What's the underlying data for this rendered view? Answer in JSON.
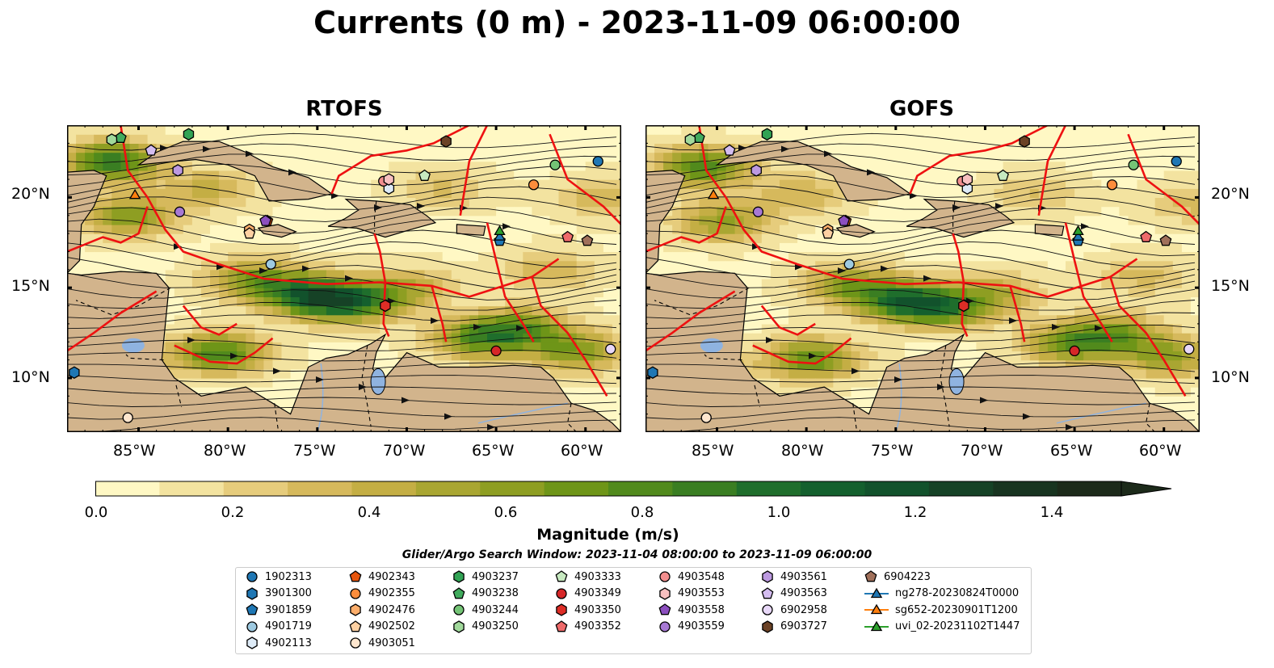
{
  "title": "Currents (0 m) - 2023-11-09 06:00:00",
  "panels": [
    {
      "title": "RTOFS"
    },
    {
      "title": "GOFS"
    }
  ],
  "lat_labels": [
    "20°N",
    "15°N",
    "10°N"
  ],
  "lon_labels": [
    "85°W",
    "80°W",
    "75°W",
    "70°W",
    "65°W",
    "60°W"
  ],
  "colorbar": {
    "label": "Magnitude (m/s)",
    "ticks": [
      "0.0",
      "0.2",
      "0.4",
      "0.6",
      "0.8",
      "1.0",
      "1.2",
      "1.4"
    ],
    "range": [
      0.0,
      1.5
    ],
    "colors": [
      "#fff8c4",
      "#f3e3a0",
      "#e6cc7c",
      "#d6b95c",
      "#c4ae44",
      "#a9a632",
      "#8e9e22",
      "#6e9518",
      "#518a1c",
      "#3a7e22",
      "#1f6e2c",
      "#14602e",
      "#12522c",
      "#164226",
      "#183420",
      "#1c2a1a"
    ]
  },
  "search_window": "Glider/Argo Search Window: 2023-11-04 08:00:00 to 2023-11-09 06:00:00",
  "legend": [
    {
      "label": "1902313",
      "marker": "circle",
      "color": "#1f77b4"
    },
    {
      "label": "3901300",
      "marker": "hexagon",
      "color": "#1f77b4"
    },
    {
      "label": "3901859",
      "marker": "pentagon",
      "color": "#1f77b4"
    },
    {
      "label": "4901719",
      "marker": "circle",
      "color": "#9ecae1"
    },
    {
      "label": "4902113",
      "marker": "hexagon",
      "color": "#deebf7"
    },
    {
      "label": "4902343",
      "marker": "pentagon",
      "color": "#e6550d"
    },
    {
      "label": "4902355",
      "marker": "circle",
      "color": "#fd8d3c"
    },
    {
      "label": "4902476",
      "marker": "hexagon",
      "color": "#fdae6b"
    },
    {
      "label": "4902502",
      "marker": "pentagon",
      "color": "#fdd0a2"
    },
    {
      "label": "4903051",
      "marker": "circle",
      "color": "#fee6ce"
    },
    {
      "label": "4903237",
      "marker": "hexagon",
      "color": "#31a354"
    },
    {
      "label": "4903238",
      "marker": "pentagon",
      "color": "#41ab5d"
    },
    {
      "label": "4903244",
      "marker": "circle",
      "color": "#74c476"
    },
    {
      "label": "4903250",
      "marker": "hexagon",
      "color": "#a1d99b"
    },
    {
      "label": "4903333",
      "marker": "pentagon",
      "color": "#c7e9c0"
    },
    {
      "label": "4903349",
      "marker": "circle",
      "color": "#d62728"
    },
    {
      "label": "4903350",
      "marker": "hexagon",
      "color": "#de2d26"
    },
    {
      "label": "4903352",
      "marker": "pentagon",
      "color": "#ee6a6a"
    },
    {
      "label": "4903548",
      "marker": "circle",
      "color": "#f28e8e"
    },
    {
      "label": "4903553",
      "marker": "hexagon",
      "color": "#f8c0c0"
    },
    {
      "label": "4903558",
      "marker": "pentagon",
      "color": "#8c4fbf"
    },
    {
      "label": "4903559",
      "marker": "circle",
      "color": "#a779d4"
    },
    {
      "label": "4903561",
      "marker": "hexagon",
      "color": "#bc99e0"
    },
    {
      "label": "4903563",
      "marker": "pentagon",
      "color": "#d4bdf0"
    },
    {
      "label": "6902958",
      "marker": "circle",
      "color": "#e8d8f8"
    },
    {
      "label": "6903727",
      "marker": "hexagon",
      "color": "#6b4226"
    },
    {
      "label": "6904223",
      "marker": "pentagon",
      "color": "#a0705a"
    },
    {
      "label": "ng278-20230824T0000",
      "marker": "triangle-line",
      "color": "#1f77b4"
    },
    {
      "label": "sg652-20230901T1200",
      "marker": "triangle-line",
      "color": "#ff7f0e"
    },
    {
      "label": "uvi_02-20231102T1447",
      "marker": "triangle-line",
      "color": "#2ca02c"
    }
  ],
  "map_extent": {
    "lon": [
      -89,
      -58
    ],
    "lat": [
      7,
      24
    ]
  },
  "floats": [
    {
      "id": "1902313",
      "lon": -59.3,
      "lat": 22.0
    },
    {
      "id": "3901300",
      "lon": -88.6,
      "lat": 10.3
    },
    {
      "id": "3901859",
      "lon": -64.8,
      "lat": 17.6
    },
    {
      "id": "4901719",
      "lon": -77.6,
      "lat": 16.3
    },
    {
      "id": "4902113",
      "lon": -71.0,
      "lat": 20.5
    },
    {
      "id": "4902343",
      "lon": -77.8,
      "lat": 18.7
    },
    {
      "id": "4902355",
      "lon": -62.9,
      "lat": 20.7
    },
    {
      "id": "4902476",
      "lon": -78.8,
      "lat": 18.2
    },
    {
      "id": "4902502",
      "lon": -78.8,
      "lat": 18.0
    },
    {
      "id": "4903051",
      "lon": -85.6,
      "lat": 7.8
    },
    {
      "id": "4903237",
      "lon": -82.2,
      "lat": 23.5
    },
    {
      "id": "4903238",
      "lon": -86.0,
      "lat": 23.3
    },
    {
      "id": "4903244",
      "lon": -61.7,
      "lat": 21.8
    },
    {
      "id": "4903250",
      "lon": -86.5,
      "lat": 23.2
    },
    {
      "id": "4903333",
      "lon": -69.0,
      "lat": 21.2
    },
    {
      "id": "4903349",
      "lon": -65.0,
      "lat": 11.5
    },
    {
      "id": "4903350",
      "lon": -71.2,
      "lat": 14.0
    },
    {
      "id": "4903352",
      "lon": -61.0,
      "lat": 17.8
    },
    {
      "id": "4903548",
      "lon": -71.3,
      "lat": 20.9
    },
    {
      "id": "4903553",
      "lon": -71.0,
      "lat": 21.0
    },
    {
      "id": "4903558",
      "lon": -77.9,
      "lat": 18.7
    },
    {
      "id": "4903559",
      "lon": -82.7,
      "lat": 19.2
    },
    {
      "id": "4903561",
      "lon": -82.8,
      "lat": 21.5
    },
    {
      "id": "4903563",
      "lon": -84.3,
      "lat": 22.6
    },
    {
      "id": "6902958",
      "lon": -58.6,
      "lat": 11.6
    },
    {
      "id": "6903727",
      "lon": -67.8,
      "lat": 23.1
    },
    {
      "id": "6904223",
      "lon": -59.9,
      "lat": 17.6
    },
    {
      "id": "ng278-20230824T0000",
      "lon": -64.8,
      "lat": 17.8
    },
    {
      "id": "sg652-20230901T1200",
      "lon": -85.2,
      "lat": 20.1
    },
    {
      "id": "uvi_02-20231102T1447",
      "lon": -64.8,
      "lat": 18.1
    }
  ]
}
